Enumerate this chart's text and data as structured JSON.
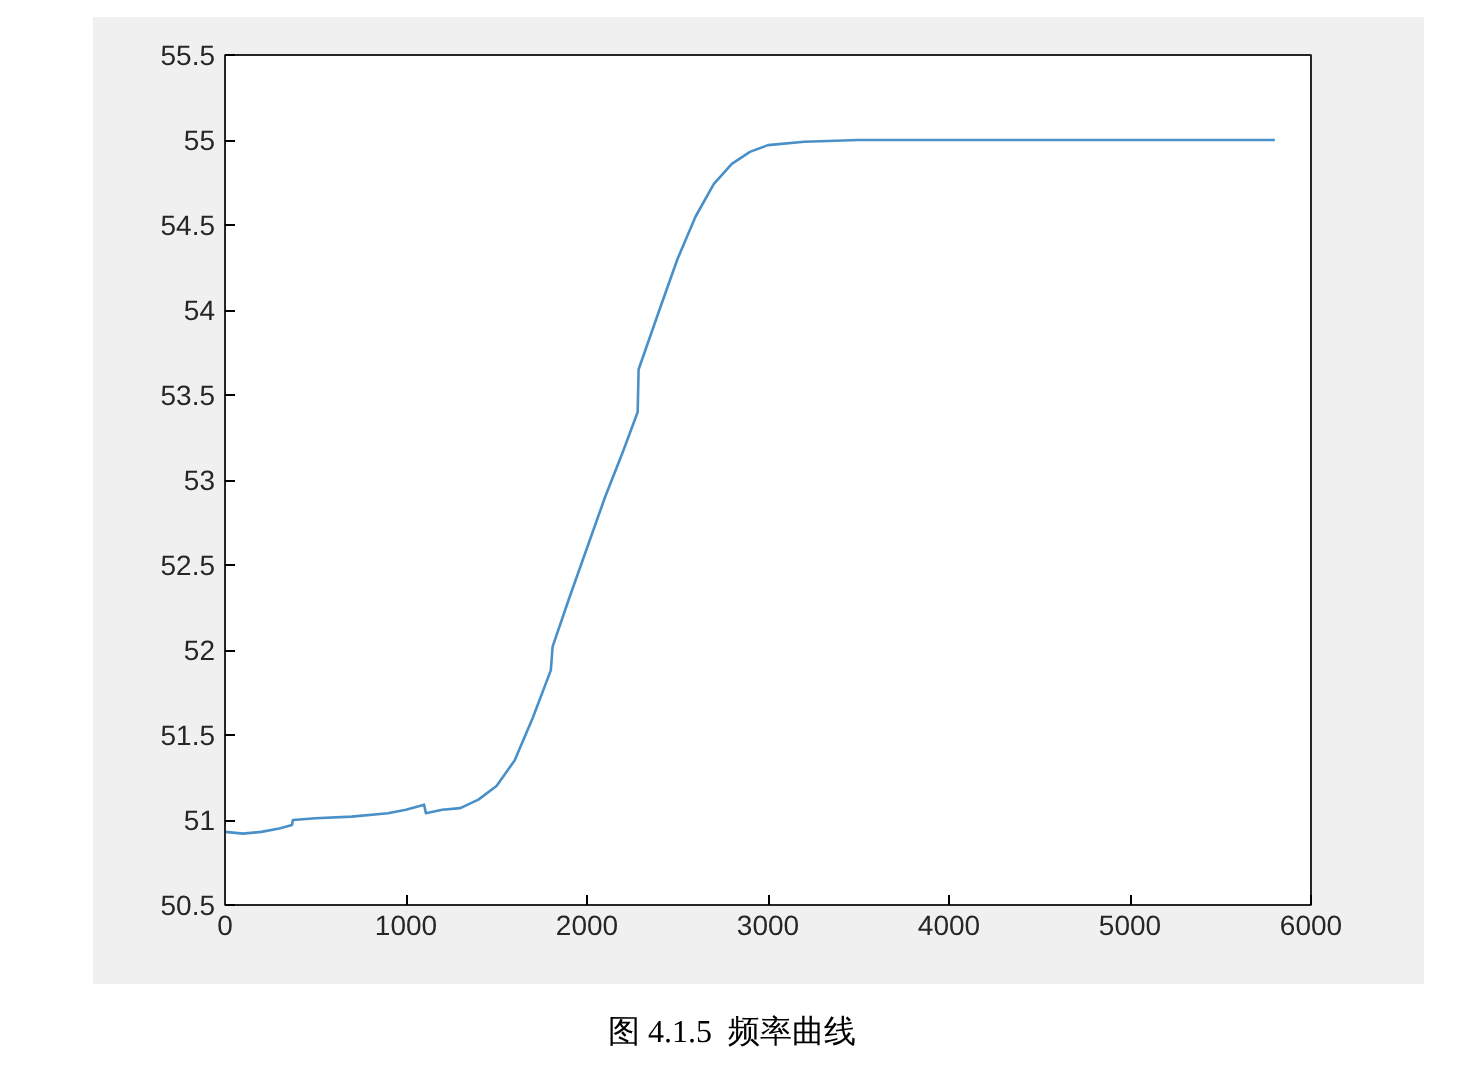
{
  "chart_data": {
    "type": "line",
    "annotations": [
      "图 4.1.5  频率曲线"
    ],
    "x": [
      0,
      100,
      200,
      300,
      370,
      375,
      500,
      700,
      900,
      1000,
      1100,
      1110,
      1200,
      1300,
      1400,
      1500,
      1600,
      1700,
      1800,
      1810,
      1900,
      2000,
      2100,
      2200,
      2280,
      2285,
      2400,
      2500,
      2600,
      2700,
      2800,
      2900,
      3000,
      3200,
      3500,
      4000,
      5000,
      5800
    ],
    "series": [
      {
        "color": "#4a90c8",
        "values": [
          50.93,
          50.92,
          50.93,
          50.95,
          50.97,
          51.0,
          51.01,
          51.02,
          51.04,
          51.06,
          51.09,
          51.04,
          51.06,
          51.07,
          51.12,
          51.2,
          51.35,
          51.6,
          51.88,
          52.02,
          52.3,
          52.6,
          52.9,
          53.17,
          53.4,
          53.65,
          54.0,
          54.3,
          54.55,
          54.74,
          54.86,
          54.93,
          54.97,
          54.99,
          55.0,
          55.0,
          55.0,
          55.0
        ]
      }
    ],
    "xlim": [
      0,
      6000
    ],
    "xticks": [
      0,
      1000,
      2000,
      3000,
      4000,
      5000,
      6000
    ],
    "ylim": [
      50.5,
      55.5
    ],
    "yticks": [
      50.5,
      51,
      51.5,
      52,
      52.5,
      53,
      53.5,
      54,
      54.5,
      55,
      55.5
    ],
    "grid": false,
    "marker": "none",
    "line_style": "solid"
  }
}
